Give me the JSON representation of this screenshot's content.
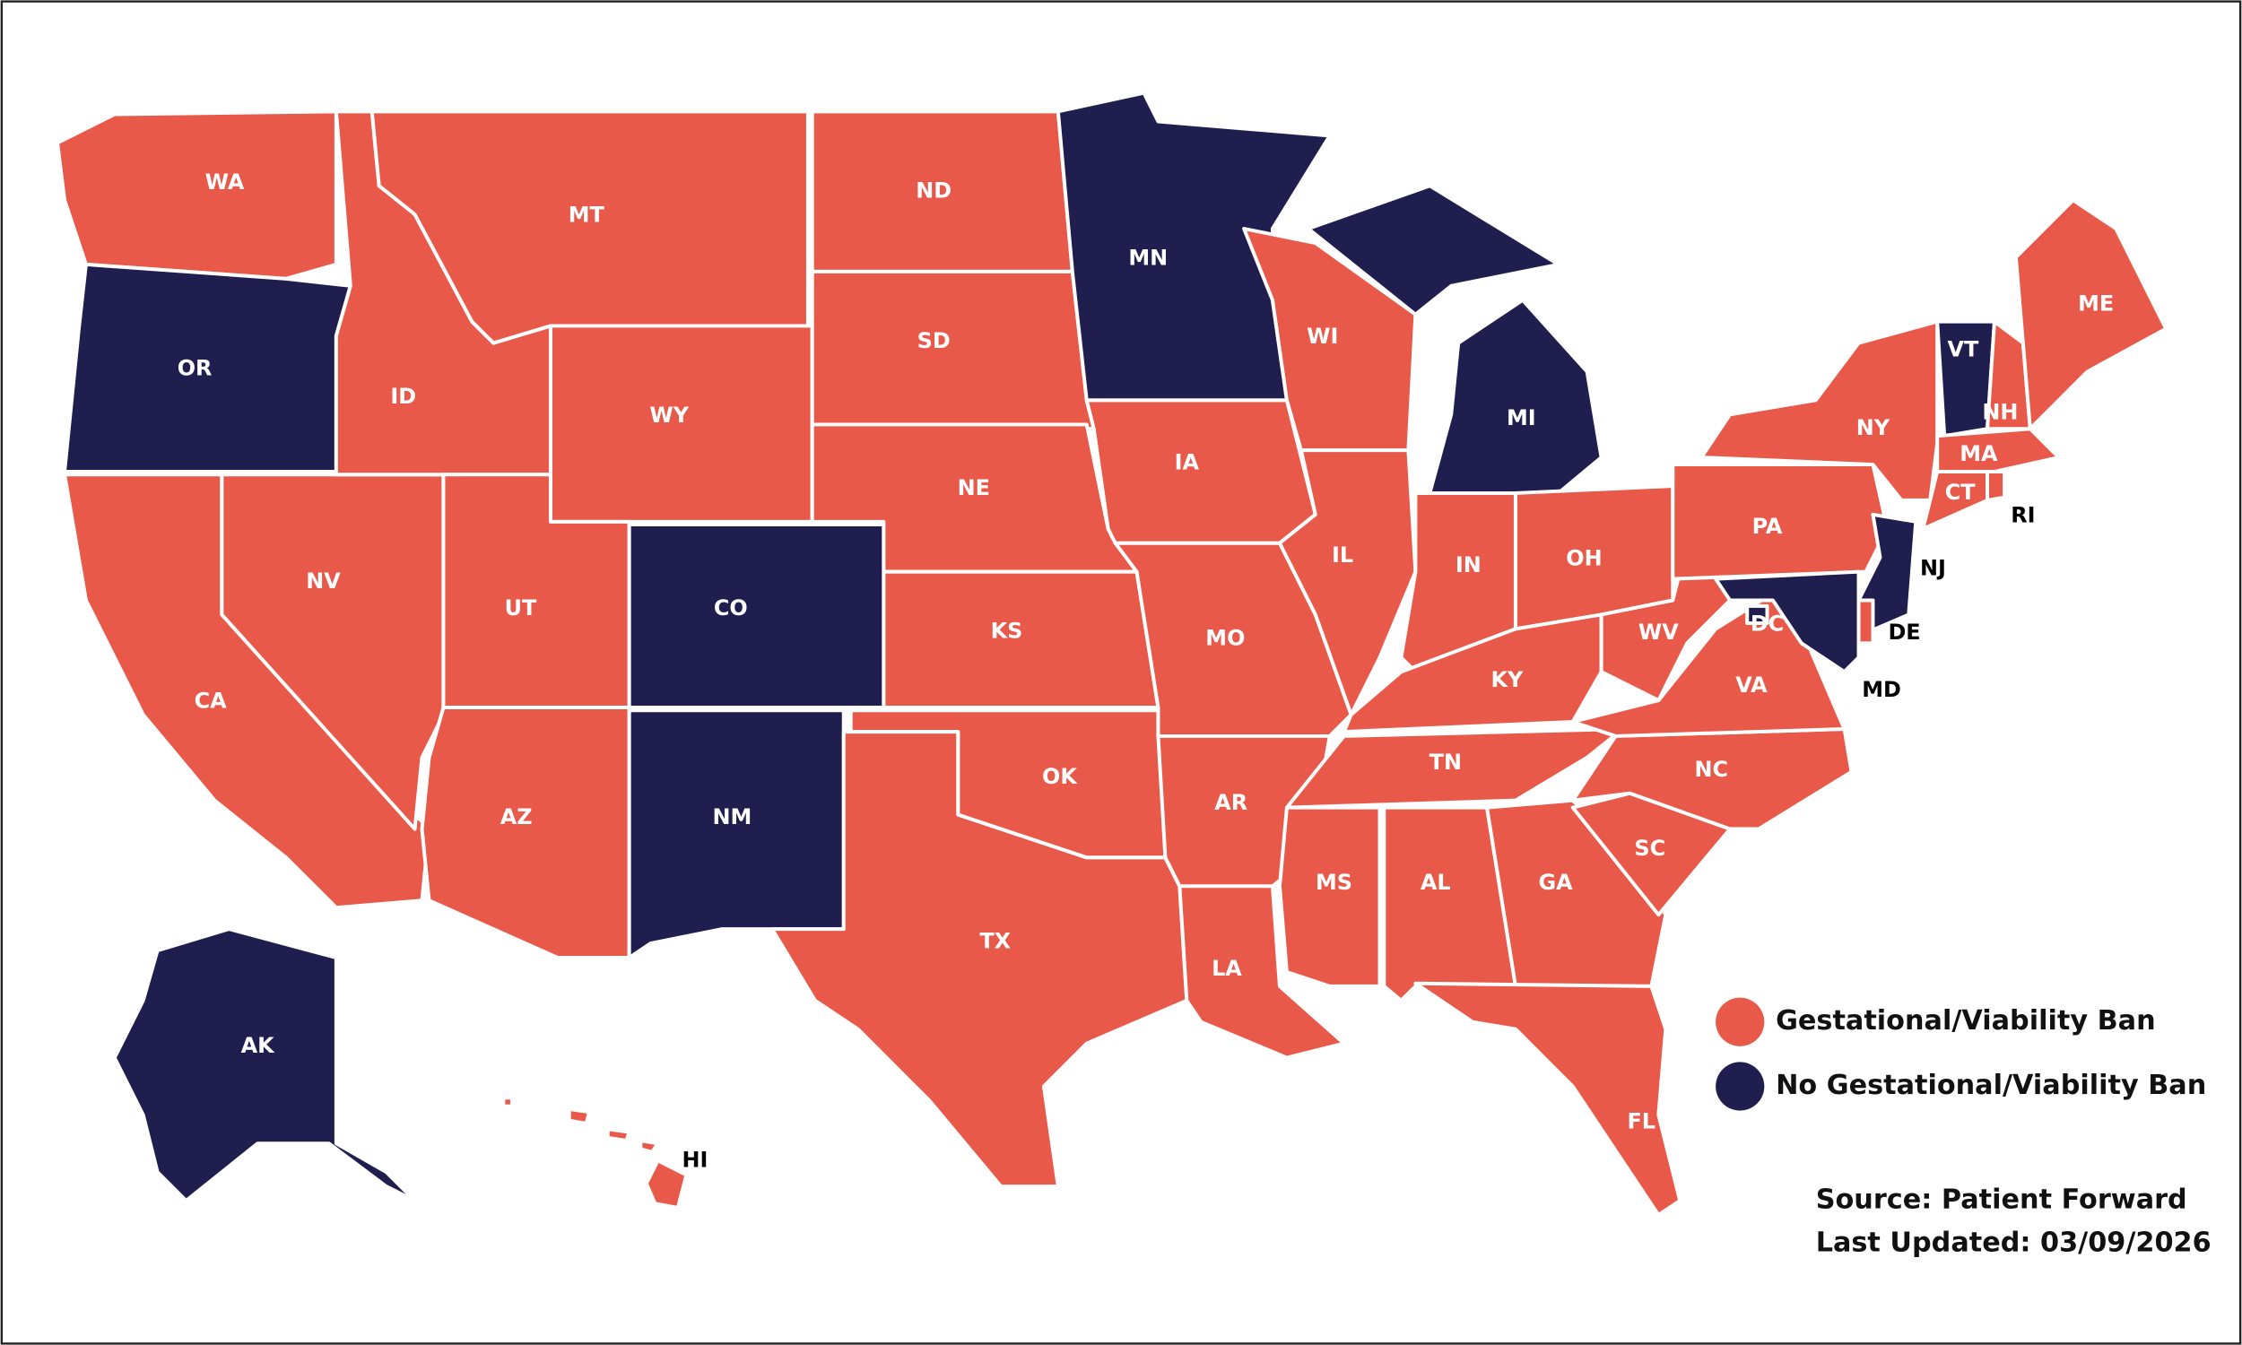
{
  "legend": [
    {
      "label": "Gestational/Viability Ban",
      "color": "#e8594a"
    },
    {
      "label": "No Gestational/Viability Ban",
      "color": "#1f1e4f"
    }
  ],
  "states": [
    {
      "label": "WA",
      "status": "Gestational/Viability Ban"
    },
    {
      "label": "OR",
      "status": "No Gestational/Viability Ban"
    },
    {
      "label": "CA",
      "status": "Gestational/Viability Ban"
    },
    {
      "label": "NV",
      "status": "Gestational/Viability Ban"
    },
    {
      "label": "ID",
      "status": "Gestational/Viability Ban"
    },
    {
      "label": "MT",
      "status": "Gestational/Viability Ban"
    },
    {
      "label": "WY",
      "status": "Gestational/Viability Ban"
    },
    {
      "label": "UT",
      "status": "Gestational/Viability Ban"
    },
    {
      "label": "CO",
      "status": "No Gestational/Viability Ban"
    },
    {
      "label": "AZ",
      "status": "Gestational/Viability Ban"
    },
    {
      "label": "NM",
      "status": "No Gestational/Viability Ban"
    },
    {
      "label": "ND",
      "status": "Gestational/Viability Ban"
    },
    {
      "label": "SD",
      "status": "Gestational/Viability Ban"
    },
    {
      "label": "NE",
      "status": "Gestational/Viability Ban"
    },
    {
      "label": "KS",
      "status": "Gestational/Viability Ban"
    },
    {
      "label": "OK",
      "status": "Gestational/Viability Ban"
    },
    {
      "label": "TX",
      "status": "Gestational/Viability Ban"
    },
    {
      "label": "MN",
      "status": "No Gestational/Viability Ban"
    },
    {
      "label": "IA",
      "status": "Gestational/Viability Ban"
    },
    {
      "label": "MO",
      "status": "Gestational/Viability Ban"
    },
    {
      "label": "AR",
      "status": "Gestational/Viability Ban"
    },
    {
      "label": "LA",
      "status": "Gestational/Viability Ban"
    },
    {
      "label": "WI",
      "status": "Gestational/Viability Ban"
    },
    {
      "label": "IL",
      "status": "Gestational/Viability Ban"
    },
    {
      "label": "MI",
      "status": "No Gestational/Viability Ban"
    },
    {
      "label": "IN",
      "status": "Gestational/Viability Ban"
    },
    {
      "label": "OH",
      "status": "Gestational/Viability Ban"
    },
    {
      "label": "KY",
      "status": "Gestational/Viability Ban"
    },
    {
      "label": "TN",
      "status": "Gestational/Viability Ban"
    },
    {
      "label": "MS",
      "status": "Gestational/Viability Ban"
    },
    {
      "label": "AL",
      "status": "Gestational/Viability Ban"
    },
    {
      "label": "GA",
      "status": "Gestational/Viability Ban"
    },
    {
      "label": "FL",
      "status": "Gestational/Viability Ban"
    },
    {
      "label": "SC",
      "status": "Gestational/Viability Ban"
    },
    {
      "label": "NC",
      "status": "Gestational/Viability Ban"
    },
    {
      "label": "VA",
      "status": "Gestational/Viability Ban"
    },
    {
      "label": "WV",
      "status": "Gestational/Viability Ban"
    },
    {
      "label": "PA",
      "status": "Gestational/Viability Ban"
    },
    {
      "label": "NY",
      "status": "Gestational/Viability Ban"
    },
    {
      "label": "VT",
      "status": "No Gestational/Viability Ban"
    },
    {
      "label": "NH",
      "status": "Gestational/Viability Ban"
    },
    {
      "label": "ME",
      "status": "Gestational/Viability Ban"
    },
    {
      "label": "MA",
      "status": "Gestational/Viability Ban"
    },
    {
      "label": "CT",
      "status": "Gestational/Viability Ban"
    },
    {
      "label": "RI",
      "status": "Gestational/Viability Ban"
    },
    {
      "label": "NJ",
      "status": "No Gestational/Viability Ban"
    },
    {
      "label": "DE",
      "status": "Gestational/Viability Ban"
    },
    {
      "label": "MD",
      "status": "No Gestational/Viability Ban"
    },
    {
      "label": "DC",
      "status": "No Gestational/Viability Ban"
    },
    {
      "label": "AK",
      "status": "No Gestational/Viability Ban"
    },
    {
      "label": "HI",
      "status": "Gestational/Viability Ban"
    }
  ],
  "source": "Source: Patient Forward",
  "updated": "Last Updated: 03/09/2026"
}
